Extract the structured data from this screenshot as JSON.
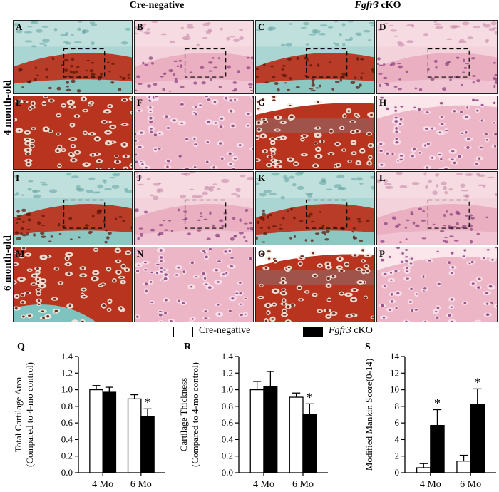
{
  "groups": {
    "cre_negative": "Cre-negative",
    "cko_italic": "Fgfr3",
    "cko_suffix": " cKO"
  },
  "rows": {
    "row1": "4 month-old",
    "row2": "6 month-old"
  },
  "panels": [
    {
      "label": "A",
      "stain": "safranin",
      "zoom": "low"
    },
    {
      "label": "B",
      "stain": "he",
      "zoom": "low"
    },
    {
      "label": "C",
      "stain": "safranin",
      "zoom": "low"
    },
    {
      "label": "D",
      "stain": "he",
      "zoom": "low"
    },
    {
      "label": "E",
      "stain": "safranin",
      "zoom": "high"
    },
    {
      "label": "F",
      "stain": "he",
      "zoom": "high"
    },
    {
      "label": "G",
      "stain": "safranin",
      "zoom": "high"
    },
    {
      "label": "H",
      "stain": "he",
      "zoom": "high"
    },
    {
      "label": "I",
      "stain": "safranin",
      "zoom": "low"
    },
    {
      "label": "J",
      "stain": "he",
      "zoom": "low"
    },
    {
      "label": "K",
      "stain": "safranin",
      "zoom": "low"
    },
    {
      "label": "L",
      "stain": "he",
      "zoom": "low"
    },
    {
      "label": "M",
      "stain": "safranin",
      "zoom": "high"
    },
    {
      "label": "N",
      "stain": "he",
      "zoom": "high"
    },
    {
      "label": "O",
      "stain": "safranin",
      "zoom": "high"
    },
    {
      "label": "P",
      "stain": "he",
      "zoom": "high"
    }
  ],
  "legend": {
    "cre_negative": "Cre-negative",
    "cko_italic": "Fgfr3",
    "cko_suffix": " cKO"
  },
  "colors": {
    "cre_negative": "#ffffff",
    "cko": "#000000",
    "safranin_red": "#b8341e",
    "fast_green": "#7fc3c0",
    "he_pink": "#eab6c4"
  },
  "chart_data": [
    {
      "letter": "Q",
      "type": "bar",
      "ylabel_line1": "Total Cartilage Area",
      "ylabel_line2": "(Compared to 4-mo control)",
      "ylim": [
        0,
        1.4
      ],
      "yticks": [
        "0.0",
        "0.2",
        "0.4",
        "0.6",
        "0.8",
        "1.0",
        "1.2",
        "1.4"
      ],
      "categories": [
        "4 Mo",
        "6 Mo"
      ],
      "series": [
        {
          "name": "Cre-negative",
          "values": [
            1.0,
            0.89
          ],
          "errors": [
            0.05,
            0.05
          ]
        },
        {
          "name": "Fgfr3 cKO",
          "values": [
            0.97,
            0.68
          ],
          "errors": [
            0.06,
            0.09
          ]
        }
      ],
      "significance": [
        "",
        "*"
      ]
    },
    {
      "letter": "R",
      "type": "bar",
      "ylabel_line1": "Cartilage Thickness",
      "ylabel_line2": "(Compared to 4-mo control)",
      "ylim": [
        0,
        1.4
      ],
      "yticks": [
        "0.0",
        "0.2",
        "0.4",
        "0.6",
        "0.8",
        "1.0",
        "1.2",
        "1.4"
      ],
      "categories": [
        "4 Mo",
        "6 Mo"
      ],
      "series": [
        {
          "name": "Cre-negative",
          "values": [
            1.0,
            0.91
          ],
          "errors": [
            0.1,
            0.05
          ]
        },
        {
          "name": "Fgfr3 cKO",
          "values": [
            1.04,
            0.7
          ],
          "errors": [
            0.18,
            0.13
          ]
        }
      ],
      "significance": [
        "",
        "*"
      ]
    },
    {
      "letter": "S",
      "type": "bar",
      "ylabel_line1": "Modified Mankin Score(0-14)",
      "ylabel_line2": "",
      "ylim": [
        0,
        14
      ],
      "yticks": [
        "0",
        "2",
        "4",
        "6",
        "8",
        "10",
        "12",
        "14"
      ],
      "categories": [
        "4 Mo",
        "6 Mo"
      ],
      "series": [
        {
          "name": "Cre-negative",
          "values": [
            0.6,
            1.4
          ],
          "errors": [
            0.5,
            0.7
          ]
        },
        {
          "name": "Fgfr3 cKO",
          "values": [
            5.7,
            8.2
          ],
          "errors": [
            1.9,
            1.9
          ]
        }
      ],
      "significance": [
        "*",
        "*"
      ]
    }
  ]
}
